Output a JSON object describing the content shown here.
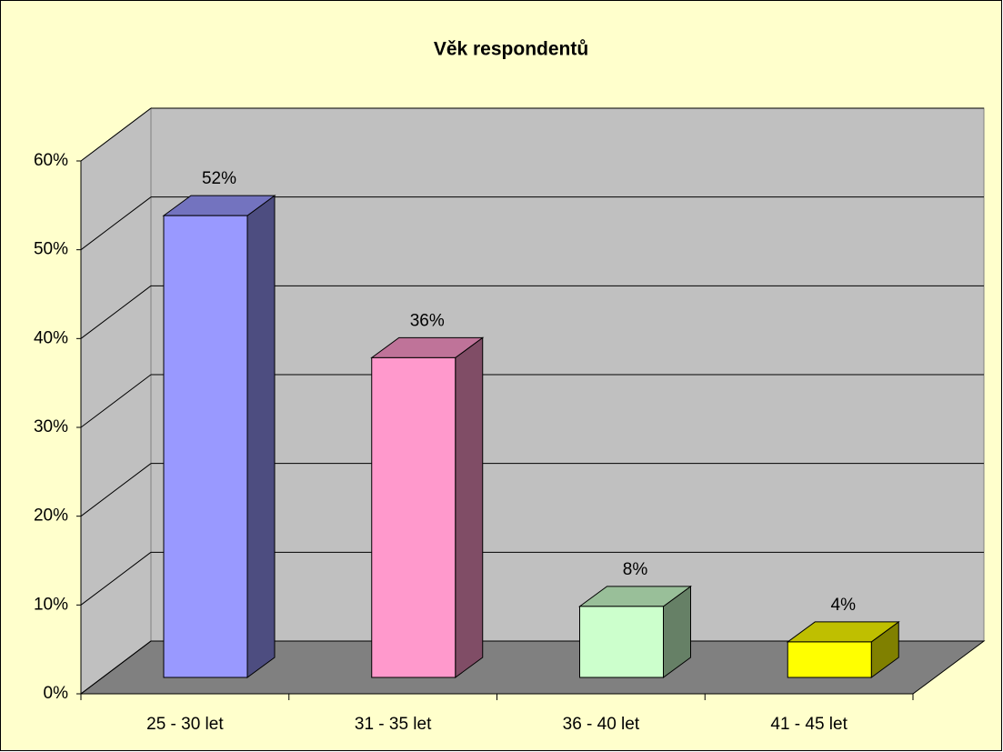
{
  "chart_data": {
    "type": "bar3d",
    "title": "Věk respondentů",
    "categories": [
      "25 - 30 let",
      "31 - 35 let",
      "36 - 40 let",
      "41 - 45 let"
    ],
    "values": [
      52,
      36,
      8,
      4
    ],
    "value_labels": [
      "52%",
      "36%",
      "8%",
      "4%"
    ],
    "colors": [
      "#9999FF",
      "#FF99CC",
      "#CCFFCC",
      "#FFFF00"
    ],
    "ylim": [
      0,
      60
    ],
    "yticks": [
      {
        "value": 0,
        "label": "0%"
      },
      {
        "value": 10,
        "label": "10%"
      },
      {
        "value": 20,
        "label": "20%"
      },
      {
        "value": 30,
        "label": "30%"
      },
      {
        "value": 40,
        "label": "40%"
      },
      {
        "value": 50,
        "label": "50%"
      },
      {
        "value": 60,
        "label": "60%"
      }
    ],
    "grid": true
  }
}
